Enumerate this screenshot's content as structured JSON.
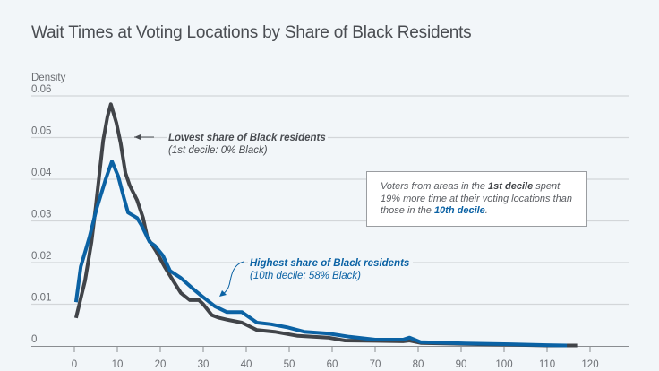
{
  "chart_data": {
    "type": "line",
    "title": "Wait Times at Voting Locations by Share of Black Residents",
    "xlabel": "",
    "ylabel": "Density",
    "xlim": [
      0,
      120
    ],
    "ylim": [
      0,
      0.06
    ],
    "xticks": [
      0,
      10,
      20,
      30,
      40,
      50,
      60,
      70,
      80,
      90,
      100,
      110,
      120
    ],
    "yticks": [
      0,
      0.01,
      0.02,
      0.03,
      0.04,
      0.05,
      0.06
    ],
    "ytick_labels": [
      "0",
      "0.01",
      "0.02",
      "0.03",
      "0.04",
      "0.05",
      "0.06"
    ],
    "grid": true,
    "series": [
      {
        "name": "Lowest share of Black residents (1st decile: 0% Black)",
        "color": "#414449",
        "x": [
          0.4,
          2.5,
          4,
          5,
          6.7,
          7.7,
          8.5,
          9.8,
          10.8,
          11.9,
          12.9,
          14.6,
          16,
          17,
          19,
          21,
          22.6,
          24.8,
          26.9,
          29,
          30,
          32,
          33.5,
          35.5,
          39,
          42.5,
          46.6,
          52,
          59,
          63,
          70,
          76.5,
          78,
          80.6,
          91,
          101.5,
          110,
          117
        ],
        "y": [
          0.0067,
          0.0157,
          0.025,
          0.0335,
          0.0493,
          0.055,
          0.058,
          0.0535,
          0.0486,
          0.0415,
          0.0385,
          0.035,
          0.0307,
          0.026,
          0.0228,
          0.019,
          0.0163,
          0.0127,
          0.011,
          0.011,
          0.01,
          0.0074,
          0.0068,
          0.0063,
          0.0056,
          0.0038,
          0.0034,
          0.0024,
          0.002,
          0.0013,
          0.0012,
          0.0011,
          0.0013,
          0.0007,
          0.0005,
          0.0003,
          0.0001,
          0.0001
        ]
      },
      {
        "name": "Highest share of Black residents (10th decile: 58% Black)",
        "color": "#0b62a4",
        "x": [
          0.4,
          1.5,
          3.5,
          5.2,
          7,
          7.3,
          8.75,
          10.2,
          11.5,
          12.5,
          14.6,
          15.6,
          17.5,
          18.8,
          20.6,
          22.3,
          24.8,
          27.5,
          29.6,
          32.7,
          35.5,
          39,
          42.5,
          45.8,
          49.4,
          53.5,
          59,
          64,
          70,
          76.5,
          78,
          80.6,
          91,
          101.5,
          110,
          114.6
        ],
        "y": [
          0.0105,
          0.019,
          0.026,
          0.033,
          0.039,
          0.04,
          0.0443,
          0.0407,
          0.0357,
          0.032,
          0.0307,
          0.029,
          0.025,
          0.024,
          0.0217,
          0.018,
          0.0163,
          0.0138,
          0.012,
          0.0095,
          0.0081,
          0.0081,
          0.0056,
          0.0052,
          0.0045,
          0.0034,
          0.003,
          0.0022,
          0.0015,
          0.0015,
          0.002,
          0.0009,
          0.0006,
          0.0004,
          0.0002,
          0.0001
        ]
      }
    ],
    "annotations": {
      "lowest_line1": "Lowest share of Black residents",
      "lowest_line2": "(1st decile: 0% Black)",
      "highest_line1": "Highest share of Black residents",
      "highest_line2": "(10th decile: 58% Black)",
      "callout": {
        "part1": "Voters from areas in the ",
        "bold1": "1st decile",
        "part2": " spent 19% more time at their voting locations than those in the ",
        "bold2": "10th decile",
        "part3": "."
      }
    }
  }
}
